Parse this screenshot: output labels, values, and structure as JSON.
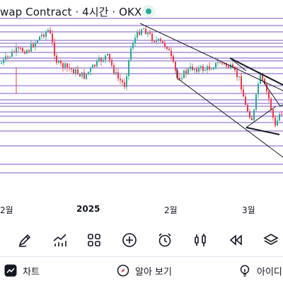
{
  "header": {
    "title": "wap Contract · 4시간 · OKX",
    "status": "live"
  },
  "x_axis": {
    "labels": [
      "2월",
      "2025",
      "2월",
      "3월"
    ]
  },
  "toolbar": {
    "tools": [
      "brush-icon",
      "indicator-icon",
      "grid-icon",
      "add-icon",
      "alarm-icon",
      "candle-icon",
      "rewind-icon",
      "layers-icon"
    ]
  },
  "tabs": {
    "chart_label": "차트",
    "ideas_label": "알아 보기",
    "third_label": "아이디"
  },
  "colors": {
    "up": "#22ab94",
    "down": "#f23645",
    "level_line": "#7e57c2",
    "trend_line": "#131722"
  },
  "chart_data": {
    "type": "candlestick",
    "x_tick_labels": [
      "2월",
      "2025",
      "2월",
      "3월"
    ],
    "horizontal_levels": 21,
    "grid": false
  }
}
